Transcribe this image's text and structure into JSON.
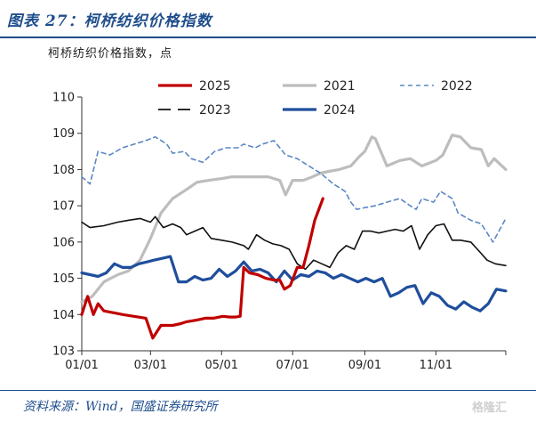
{
  "figure": {
    "title": "图表 27：柯桥纺织价格指数",
    "unit_label": "柯桥纺织价格指数，点",
    "source": "资料来源：Wind，国盛证券研究所",
    "watermark": "格隆汇"
  },
  "chart_data": {
    "type": "line",
    "title": "柯桥纺织价格指数",
    "xlabel": "",
    "ylabel": "柯桥纺织价格指数，点",
    "ylim": [
      103,
      110
    ],
    "yticks": [
      103,
      104,
      105,
      106,
      107,
      108,
      109,
      110
    ],
    "xlim": [
      "01/01",
      "12/31"
    ],
    "xticks": [
      "01/01",
      "03/01",
      "05/01",
      "07/01",
      "09/01",
      "11/01"
    ],
    "legend": "top",
    "grid": false,
    "series": [
      {
        "name": "2025",
        "color": "#c00000",
        "style": "solid-thick",
        "points": [
          [
            "01/01",
            104.0
          ],
          [
            "01/06",
            104.5
          ],
          [
            "01/11",
            104.0
          ],
          [
            "01/15",
            104.3
          ],
          [
            "01/20",
            104.1
          ],
          [
            "02/05",
            104.0
          ],
          [
            "02/25",
            103.9
          ],
          [
            "03/03",
            103.35
          ],
          [
            "03/10",
            103.7
          ],
          [
            "03/20",
            103.7
          ],
          [
            "03/27",
            103.75
          ],
          [
            "04/01",
            103.8
          ],
          [
            "04/10",
            103.85
          ],
          [
            "04/17",
            103.9
          ],
          [
            "04/24",
            103.9
          ],
          [
            "05/02",
            103.95
          ],
          [
            "05/08",
            103.93
          ],
          [
            "05/13",
            103.93
          ],
          [
            "05/17",
            103.95
          ],
          [
            "05/20",
            105.3
          ],
          [
            "05/25",
            105.15
          ],
          [
            "06/01",
            105.1
          ],
          [
            "06/08",
            105.0
          ],
          [
            "06/15",
            104.95
          ],
          [
            "06/20",
            104.95
          ],
          [
            "06/24",
            104.7
          ],
          [
            "06/29",
            104.8
          ],
          [
            "07/05",
            105.3
          ],
          [
            "07/10",
            105.3
          ],
          [
            "07/15",
            105.9
          ],
          [
            "07/20",
            106.6
          ],
          [
            "07/27",
            107.2
          ]
        ]
      },
      {
        "name": "2021",
        "color": "#bdbdbd",
        "style": "solid-thick",
        "points": [
          [
            "01/01",
            104.35
          ],
          [
            "01/10",
            104.5
          ],
          [
            "01/20",
            104.9
          ],
          [
            "02/01",
            105.1
          ],
          [
            "02/10",
            105.2
          ],
          [
            "02/20",
            105.5
          ],
          [
            "03/01",
            106.1
          ],
          [
            "03/10",
            106.8
          ],
          [
            "03/20",
            107.2
          ],
          [
            "04/01",
            107.45
          ],
          [
            "04/10",
            107.65
          ],
          [
            "04/20",
            107.7
          ],
          [
            "05/01",
            107.75
          ],
          [
            "05/10",
            107.8
          ],
          [
            "05/20",
            107.8
          ],
          [
            "06/01",
            107.8
          ],
          [
            "06/10",
            107.8
          ],
          [
            "06/20",
            107.7
          ],
          [
            "06/25",
            107.3
          ],
          [
            "07/01",
            107.7
          ],
          [
            "07/10",
            107.7
          ],
          [
            "07/18",
            107.8
          ],
          [
            "07/25",
            107.9
          ],
          [
            "08/01",
            107.95
          ],
          [
            "08/10",
            108.0
          ],
          [
            "08/20",
            108.1
          ],
          [
            "08/27",
            108.35
          ],
          [
            "09/01",
            108.5
          ],
          [
            "09/07",
            108.9
          ],
          [
            "09/10",
            108.85
          ],
          [
            "09/20",
            108.1
          ],
          [
            "10/01",
            108.25
          ],
          [
            "10/10",
            108.3
          ],
          [
            "10/20",
            108.1
          ],
          [
            "11/01",
            108.25
          ],
          [
            "11/07",
            108.4
          ],
          [
            "11/15",
            108.95
          ],
          [
            "11/22",
            108.9
          ],
          [
            "12/01",
            108.6
          ],
          [
            "12/10",
            108.55
          ],
          [
            "12/16",
            108.1
          ],
          [
            "12/21",
            108.3
          ],
          [
            "12/31",
            108.0
          ]
        ]
      },
      {
        "name": "2022",
        "color": "#5b87c5",
        "style": "dashed",
        "points": [
          [
            "01/01",
            107.8
          ],
          [
            "01/08",
            107.6
          ],
          [
            "01/15",
            108.5
          ],
          [
            "01/25",
            108.4
          ],
          [
            "02/05",
            108.6
          ],
          [
            "02/15",
            108.7
          ],
          [
            "02/25",
            108.8
          ],
          [
            "03/05",
            108.9
          ],
          [
            "03/15",
            108.7
          ],
          [
            "03/20",
            108.45
          ],
          [
            "03/30",
            108.5
          ],
          [
            "04/05",
            108.3
          ],
          [
            "04/15",
            108.2
          ],
          [
            "04/25",
            108.5
          ],
          [
            "05/05",
            108.6
          ],
          [
            "05/15",
            108.6
          ],
          [
            "05/20",
            108.7
          ],
          [
            "05/30",
            108.6
          ],
          [
            "06/05",
            108.7
          ],
          [
            "06/15",
            108.8
          ],
          [
            "06/25",
            108.4
          ],
          [
            "07/05",
            108.3
          ],
          [
            "07/15",
            108.1
          ],
          [
            "07/25",
            107.9
          ],
          [
            "08/05",
            107.6
          ],
          [
            "08/15",
            107.4
          ],
          [
            "08/20",
            107.1
          ],
          [
            "08/25",
            106.9
          ],
          [
            "09/01",
            106.95
          ],
          [
            "09/10",
            107.0
          ],
          [
            "09/20",
            107.1
          ],
          [
            "10/01",
            107.2
          ],
          [
            "10/10",
            107.0
          ],
          [
            "10/15",
            106.9
          ],
          [
            "10/20",
            107.2
          ],
          [
            "10/30",
            107.1
          ],
          [
            "11/05",
            107.4
          ],
          [
            "11/15",
            107.2
          ],
          [
            "11/20",
            106.8
          ],
          [
            "12/01",
            106.6
          ],
          [
            "12/10",
            106.5
          ],
          [
            "12/20",
            106.0
          ],
          [
            "12/31",
            106.65
          ]
        ]
      },
      {
        "name": "2023",
        "color": "#111111",
        "style": "long-dash",
        "points": [
          [
            "01/01",
            106.55
          ],
          [
            "01/08",
            106.4
          ],
          [
            "01/20",
            106.45
          ],
          [
            "02/01",
            106.55
          ],
          [
            "02/10",
            106.6
          ],
          [
            "02/20",
            106.65
          ],
          [
            "03/01",
            106.55
          ],
          [
            "03/05",
            106.7
          ],
          [
            "03/12",
            106.4
          ],
          [
            "03/20",
            106.5
          ],
          [
            "03/27",
            106.4
          ],
          [
            "04/01",
            106.2
          ],
          [
            "04/08",
            106.3
          ],
          [
            "04/15",
            106.4
          ],
          [
            "04/22",
            106.1
          ],
          [
            "05/01",
            106.05
          ],
          [
            "05/10",
            106.0
          ],
          [
            "05/20",
            105.9
          ],
          [
            "05/24",
            105.8
          ],
          [
            "05/31",
            106.2
          ],
          [
            "06/07",
            106.05
          ],
          [
            "06/14",
            105.95
          ],
          [
            "06/21",
            105.9
          ],
          [
            "06/28",
            105.8
          ],
          [
            "07/05",
            105.4
          ],
          [
            "07/12",
            105.25
          ],
          [
            "07/19",
            105.5
          ],
          [
            "07/26",
            105.4
          ],
          [
            "08/02",
            105.3
          ],
          [
            "08/09",
            105.7
          ],
          [
            "08/16",
            105.9
          ],
          [
            "08/23",
            105.8
          ],
          [
            "08/30",
            106.3
          ],
          [
            "09/06",
            106.3
          ],
          [
            "09/13",
            106.25
          ],
          [
            "09/20",
            106.3
          ],
          [
            "09/27",
            106.35
          ],
          [
            "10/04",
            106.3
          ],
          [
            "10/11",
            106.45
          ],
          [
            "10/18",
            105.8
          ],
          [
            "10/25",
            106.2
          ],
          [
            "11/01",
            106.45
          ],
          [
            "11/08",
            106.5
          ],
          [
            "11/15",
            106.05
          ],
          [
            "11/22",
            106.05
          ],
          [
            "12/01",
            106.0
          ],
          [
            "12/08",
            105.75
          ],
          [
            "12/15",
            105.5
          ],
          [
            "12/22",
            105.4
          ],
          [
            "12/31",
            105.35
          ]
        ]
      },
      {
        "name": "2024",
        "color": "#1f4e9c",
        "style": "solid-thick",
        "points": [
          [
            "01/01",
            105.15
          ],
          [
            "01/08",
            105.1
          ],
          [
            "01/15",
            105.05
          ],
          [
            "01/22",
            105.15
          ],
          [
            "01/29",
            105.4
          ],
          [
            "02/05",
            105.3
          ],
          [
            "02/12",
            105.3
          ],
          [
            "02/19",
            105.4
          ],
          [
            "02/26",
            105.45
          ],
          [
            "03/04",
            105.5
          ],
          [
            "03/11",
            105.55
          ],
          [
            "03/18",
            105.6
          ],
          [
            "03/25",
            104.9
          ],
          [
            "04/01",
            104.9
          ],
          [
            "04/08",
            105.05
          ],
          [
            "04/15",
            104.95
          ],
          [
            "04/22",
            105.0
          ],
          [
            "04/29",
            105.25
          ],
          [
            "05/06",
            105.05
          ],
          [
            "05/13",
            105.2
          ],
          [
            "05/20",
            105.45
          ],
          [
            "05/27",
            105.2
          ],
          [
            "06/03",
            105.25
          ],
          [
            "06/10",
            105.15
          ],
          [
            "06/17",
            104.9
          ],
          [
            "06/24",
            105.2
          ],
          [
            "07/01",
            104.95
          ],
          [
            "07/08",
            105.1
          ],
          [
            "07/15",
            105.05
          ],
          [
            "07/22",
            105.2
          ],
          [
            "07/29",
            105.15
          ],
          [
            "08/05",
            105.0
          ],
          [
            "08/12",
            105.1
          ],
          [
            "08/19",
            105.0
          ],
          [
            "08/26",
            104.9
          ],
          [
            "09/02",
            105.0
          ],
          [
            "09/09",
            104.9
          ],
          [
            "09/16",
            105.0
          ],
          [
            "09/23",
            104.5
          ],
          [
            "09/30",
            104.6
          ],
          [
            "10/07",
            104.75
          ],
          [
            "10/14",
            104.8
          ],
          [
            "10/21",
            104.3
          ],
          [
            "10/28",
            104.6
          ],
          [
            "11/04",
            104.5
          ],
          [
            "11/11",
            104.25
          ],
          [
            "11/18",
            104.15
          ],
          [
            "11/25",
            104.35
          ],
          [
            "12/02",
            104.2
          ],
          [
            "12/09",
            104.1
          ],
          [
            "12/16",
            104.3
          ],
          [
            "12/23",
            104.7
          ],
          [
            "12/31",
            104.65
          ]
        ]
      }
    ]
  }
}
